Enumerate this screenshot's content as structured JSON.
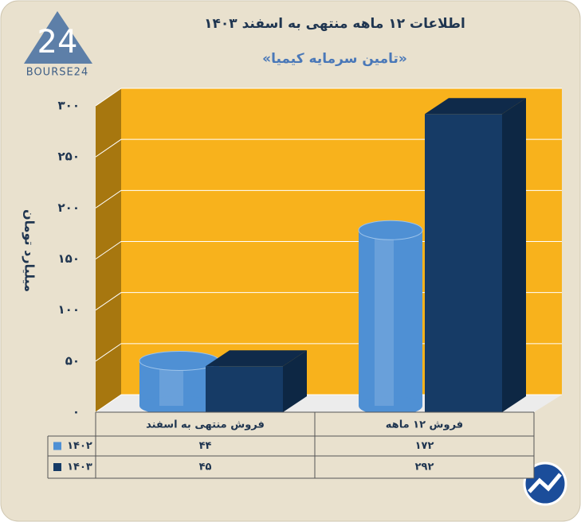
{
  "logo": {
    "mark": "24",
    "name": "BOURSE24"
  },
  "chart_data": {
    "type": "bar3d",
    "title": "اطلاعات ۱۲ ماهه منتهی به اسفند ۱۴۰۳",
    "subtitle": "«تامین سرمایه کیمیا»",
    "y_label": "میلیارد تومان",
    "categories": [
      "فروش منتهی به  اسفند",
      "فروش ۱۲  ماهه"
    ],
    "series": [
      {
        "name": "۱۴۰۲",
        "color": "#4f90d4",
        "shape": "cylinder",
        "values": [
          44,
          172
        ],
        "value_labels": [
          "۴۴",
          "۱۷۲"
        ]
      },
      {
        "name": "۱۴۰۳",
        "color": "#163b66",
        "shape": "box",
        "values": [
          45,
          292
        ],
        "value_labels": [
          "۴۵",
          "۲۹۲"
        ]
      }
    ],
    "ylim": [
      0,
      300
    ],
    "yticks": [
      {
        "value": 0,
        "label": "۰"
      },
      {
        "value": 50,
        "label": "۵۰"
      },
      {
        "value": 100,
        "label": "۱۰۰"
      },
      {
        "value": 150,
        "label": "۱۵۰"
      },
      {
        "value": 200,
        "label": "۲۰۰"
      },
      {
        "value": 250,
        "label": "۲۵۰"
      },
      {
        "value": 300,
        "label": "۳۰۰"
      }
    ],
    "grid": true
  }
}
